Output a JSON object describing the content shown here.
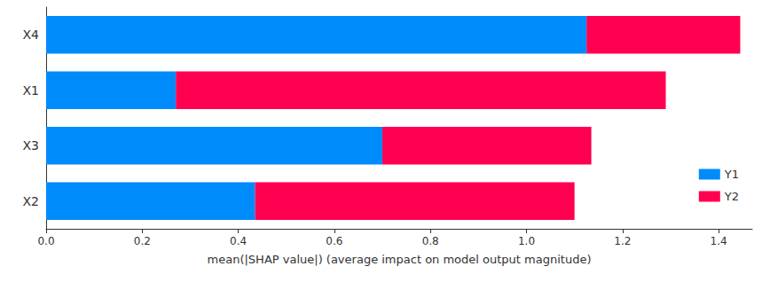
{
  "chart_data": {
    "type": "bar",
    "orientation": "horizontal",
    "stacked": true,
    "grid": false,
    "legend": "lower right",
    "xlabel": "mean(|SHAP value|) (average impact on model output magnitude)",
    "categories": [
      "X4",
      "X1",
      "X3",
      "X2"
    ],
    "series": [
      {
        "name": "Y1",
        "color": "#008bfb",
        "values": [
          1.125,
          0.27,
          0.7,
          0.435
        ]
      },
      {
        "name": "Y2",
        "color": "#ff0051",
        "values": [
          0.32,
          1.02,
          0.435,
          0.665
        ]
      }
    ],
    "xlim": [
      0,
      1.47
    ],
    "xticks": [
      {
        "value": 0,
        "label": "0.0"
      },
      0.2,
      0.4,
      0.6,
      0.8,
      {
        "value": 1,
        "label": "1.0"
      },
      1.2,
      1.4
    ]
  }
}
